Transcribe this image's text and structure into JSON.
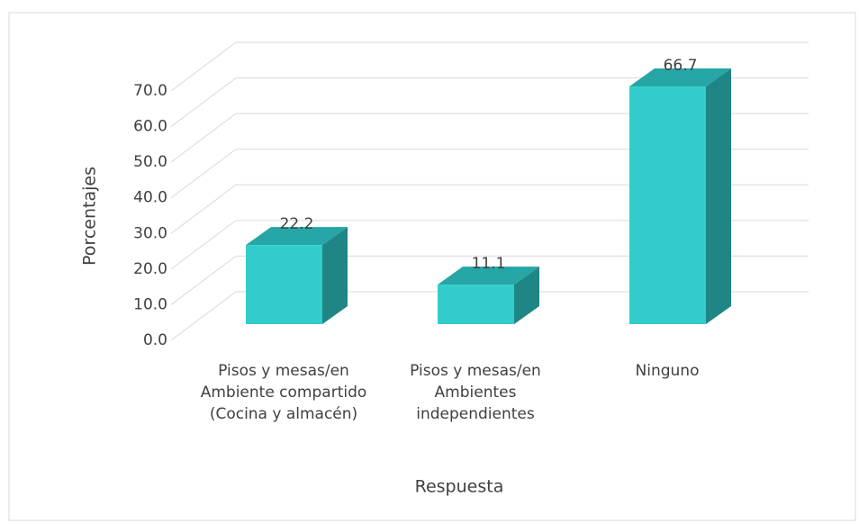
{
  "chart_data": {
    "type": "bar3d",
    "categories": [
      "Pisos y mesas/en Ambiente compartido (Cocina y almacén)",
      "Pisos y mesas/en Ambientes independientes",
      "Ninguno"
    ],
    "values": [
      22.2,
      11.1,
      66.7
    ],
    "color": "#33cccc",
    "ylim": [
      0,
      70
    ],
    "yticks": [
      {
        "value": 0,
        "label": "0.0"
      },
      {
        "value": 10,
        "label": "10.0"
      },
      {
        "value": 20,
        "label": "20.0"
      },
      {
        "value": 30,
        "label": "30.0"
      },
      {
        "value": 40,
        "label": "40.0"
      },
      {
        "value": 50,
        "label": "50.0"
      },
      {
        "value": 60,
        "label": "60.0"
      },
      {
        "value": 70,
        "label": "70.0"
      }
    ],
    "grid": true,
    "ylabel": "Porcentajes",
    "xlabel": "Respuesta"
  }
}
